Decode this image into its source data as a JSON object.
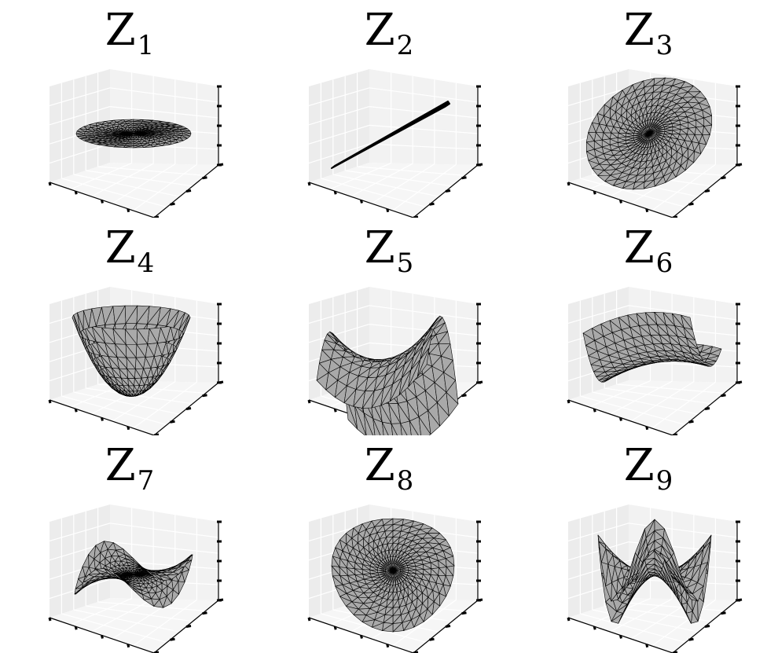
{
  "chart_data": [
    {
      "type": "surface",
      "title": "Z",
      "subscript": "1",
      "surface": "paraboloid-flat",
      "xticks": 5,
      "yticks": 5,
      "zticks": 5,
      "grid": true,
      "panes": true
    },
    {
      "type": "surface",
      "title": "Z",
      "subscript": "2",
      "surface": "line-diagonal",
      "xticks": 5,
      "yticks": 5,
      "zticks": 5,
      "grid": true,
      "panes": true
    },
    {
      "type": "surface",
      "title": "Z",
      "subscript": "3",
      "surface": "tilted-disk",
      "xticks": 5,
      "yticks": 5,
      "zticks": 5,
      "grid": true,
      "panes": true
    },
    {
      "type": "surface",
      "title": "Z",
      "subscript": "4",
      "surface": "paraboloid-bowl",
      "xticks": 5,
      "yticks": 5,
      "zticks": 5,
      "grid": true,
      "panes": true
    },
    {
      "type": "surface",
      "title": "Z",
      "subscript": "5",
      "surface": "saddle-up",
      "xticks": 5,
      "yticks": 5,
      "zticks": 5,
      "grid": true,
      "panes": true
    },
    {
      "type": "surface",
      "title": "Z",
      "subscript": "6",
      "surface": "saddle-down",
      "xticks": 5,
      "yticks": 5,
      "zticks": 5,
      "grid": true,
      "panes": true
    },
    {
      "type": "surface",
      "title": "Z",
      "subscript": "7",
      "surface": "monkey-saddle",
      "xticks": 5,
      "yticks": 5,
      "zticks": 5,
      "grid": true,
      "panes": true
    },
    {
      "type": "surface",
      "title": "Z",
      "subscript": "8",
      "surface": "wavy-disk",
      "xticks": 5,
      "yticks": 5,
      "zticks": 5,
      "grid": true,
      "panes": true
    },
    {
      "type": "surface",
      "title": "Z",
      "subscript": "9",
      "surface": "four-lobe",
      "xticks": 5,
      "yticks": 5,
      "zticks": 5,
      "grid": true,
      "panes": true
    }
  ],
  "colors": {
    "surface_fill": "#a9a9a9",
    "mesh_edge": "#000000",
    "pane_left": "#ececec",
    "pane_back": "#f2f2f2",
    "pane_floor": "#f6f6f6",
    "grid_line": "#ffffff",
    "tick": "#000000"
  }
}
